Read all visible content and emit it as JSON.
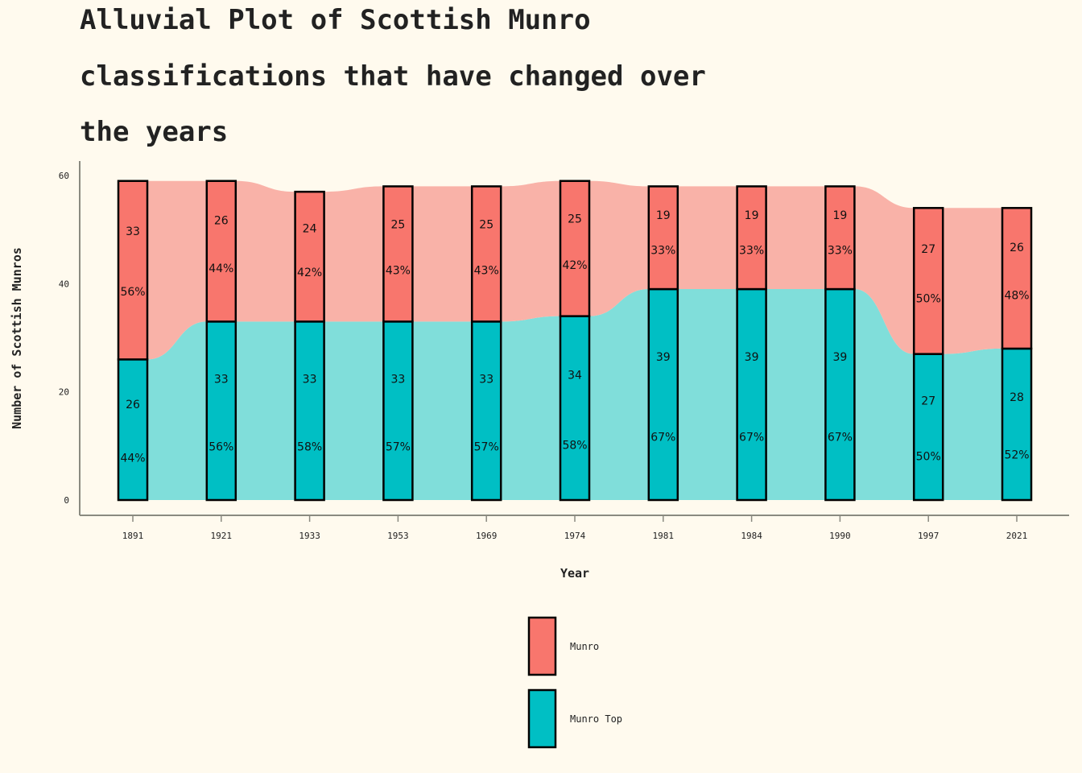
{
  "colors": {
    "background": "#FFFAEE",
    "munro": "#F8766D",
    "munro_flow": "#F9B2A8",
    "munro_top": "#00BFC4",
    "munro_top_flow": "#80DEDA",
    "axis": "#8A8A80"
  },
  "chart_data": {
    "type": "alluvial",
    "title_lines": [
      "Alluvial Plot of Scottish Munro",
      "classifications that have changed over",
      "the years"
    ],
    "xlabel": "Year",
    "ylabel": "Number of Scottish Munros",
    "ylim": [
      0,
      60
    ],
    "yticks": [
      0,
      20,
      40,
      60
    ],
    "categories": [
      "1891",
      "1921",
      "1933",
      "1953",
      "1969",
      "1974",
      "1981",
      "1984",
      "1990",
      "1997",
      "2021"
    ],
    "series": [
      {
        "name": "Munro Top",
        "values": [
          26,
          33,
          33,
          33,
          33,
          34,
          39,
          39,
          39,
          27,
          28
        ],
        "percent_labels": [
          "44%",
          "56%",
          "58%",
          "57%",
          "57%",
          "58%",
          "67%",
          "67%",
          "67%",
          "50%",
          "52%"
        ]
      },
      {
        "name": "Munro",
        "values": [
          33,
          26,
          24,
          25,
          25,
          25,
          19,
          19,
          19,
          27,
          26
        ],
        "percent_labels": [
          "56%",
          "44%",
          "42%",
          "43%",
          "43%",
          "42%",
          "33%",
          "33%",
          "33%",
          "50%",
          "48%"
        ]
      }
    ],
    "legend": [
      "Munro",
      "Munro Top"
    ],
    "legend_position": "bottom"
  }
}
